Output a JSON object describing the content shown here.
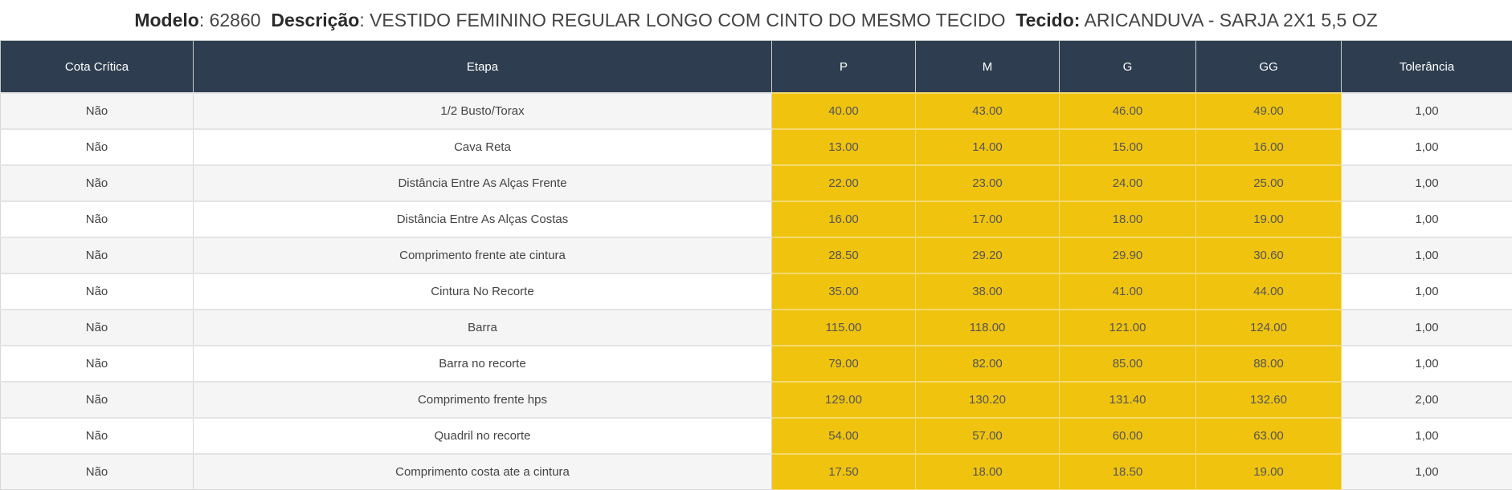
{
  "header": {
    "modelo_label": "Modelo",
    "modelo_value": ": 62860",
    "descricao_label": "Descrição",
    "descricao_value": ": VESTIDO FEMININO REGULAR LONGO COM CINTO DO MESMO TECIDO",
    "tecido_label": "Tecido:",
    "tecido_value": " ARICANDUVA - SARJA 2X1 5,5 OZ"
  },
  "table": {
    "columns": [
      "Cota Crítica",
      "Etapa",
      "P",
      "M",
      "G",
      "GG",
      "Tolerância"
    ],
    "rows": [
      [
        "Não",
        "1/2 Busto/Torax",
        "40.00",
        "43.00",
        "46.00",
        "49.00",
        "1,00"
      ],
      [
        "Não",
        "Cava Reta",
        "13.00",
        "14.00",
        "15.00",
        "16.00",
        "1,00"
      ],
      [
        "Não",
        "Distância Entre As Alças Frente",
        "22.00",
        "23.00",
        "24.00",
        "25.00",
        "1,00"
      ],
      [
        "Não",
        "Distância Entre As Alças Costas",
        "16.00",
        "17.00",
        "18.00",
        "19.00",
        "1,00"
      ],
      [
        "Não",
        "Comprimento frente ate cintura",
        "28.50",
        "29.20",
        "29.90",
        "30.60",
        "1,00"
      ],
      [
        "Não",
        "Cintura No Recorte",
        "35.00",
        "38.00",
        "41.00",
        "44.00",
        "1,00"
      ],
      [
        "Não",
        "Barra",
        "115.00",
        "118.00",
        "121.00",
        "124.00",
        "1,00"
      ],
      [
        "Não",
        "Barra no recorte",
        "79.00",
        "82.00",
        "85.00",
        "88.00",
        "1,00"
      ],
      [
        "Não",
        "Comprimento frente hps",
        "129.00",
        "130.20",
        "131.40",
        "132.60",
        "2,00"
      ],
      [
        "Não",
        "Quadril no recorte",
        "54.00",
        "57.00",
        "60.00",
        "63.00",
        "1,00"
      ],
      [
        "Não",
        "Comprimento costa ate a cintura",
        "17.50",
        "18.00",
        "18.50",
        "19.00",
        "1,00"
      ]
    ]
  },
  "colors": {
    "header_bg": "#2e3e50",
    "size_cell_bg": "#f0c30f"
  }
}
